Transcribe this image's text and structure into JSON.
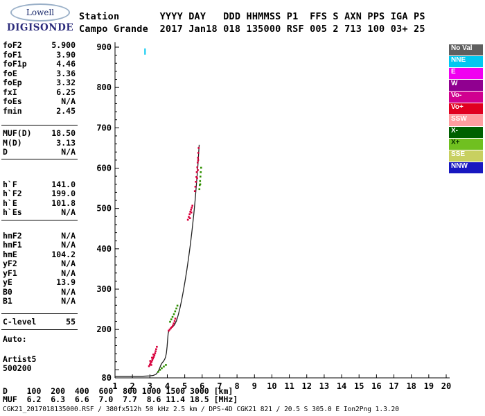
{
  "logo": {
    "name": "Lowell",
    "brand": "DIGISONDE"
  },
  "header": {
    "line1": "Station       YYYY DAY   DDD HHMMSS P1  FFS S AXN PPS IGA PS",
    "line2": "Campo Grande  2017 Jan18 018 135000 RSF 005 2 713 100 03+ 25"
  },
  "params": {
    "groups": [
      {
        "rows": [
          [
            "foF2",
            "5.900"
          ],
          [
            "foF1",
            "3.90"
          ],
          [
            "foF1p",
            "4.46"
          ],
          [
            "foE",
            "3.36"
          ],
          [
            "foEp",
            "3.32"
          ],
          [
            "fxI",
            "6.25"
          ],
          [
            "foEs",
            "N/A"
          ],
          [
            "fmin",
            "2.45"
          ]
        ]
      },
      {
        "rows": [
          [
            "MUF(D)",
            "18.50"
          ],
          [
            "M(D)",
            "3.13"
          ],
          [
            "D",
            "N/A"
          ]
        ]
      },
      {
        "rows": [
          [
            "h`F",
            "141.0"
          ],
          [
            "h`F2",
            "199.0"
          ],
          [
            "h`E",
            "101.8"
          ],
          [
            "h`Es",
            "N/A"
          ]
        ]
      },
      {
        "rows": [
          [
            "hmF2",
            "N/A"
          ],
          [
            "hmF1",
            "N/A"
          ],
          [
            "hmE",
            "104.2"
          ],
          [
            "yF2",
            "N/A"
          ],
          [
            "yF1",
            "N/A"
          ],
          [
            "yE",
            "13.9"
          ],
          [
            "B0",
            "N/A"
          ],
          [
            "B1",
            "N/A"
          ]
        ]
      },
      {
        "rows": [
          [
            "C-level",
            "55"
          ]
        ]
      },
      {
        "rows": [
          [
            "Auto:",
            ""
          ]
        ]
      },
      {
        "rows": [
          [
            "Artist5",
            ""
          ],
          [
            "500200",
            ""
          ]
        ]
      }
    ]
  },
  "legend": {
    "items": [
      {
        "label": "No Val",
        "color": "#5f5f5f",
        "text": "#ffffff"
      },
      {
        "label": "NNE",
        "color": "#00c8f0",
        "text": "#ffffff"
      },
      {
        "label": "E",
        "color": "#f000f0",
        "text": "#ffffff"
      },
      {
        "label": "W",
        "color": "#900090",
        "text": "#ffffff"
      },
      {
        "label": "Vo-",
        "color": "#d00090",
        "text": "#ffffff"
      },
      {
        "label": "Vo+",
        "color": "#e00020",
        "text": "#ffffff"
      },
      {
        "label": "SSW",
        "color": "#ff9ea0",
        "text": "#ffffff"
      },
      {
        "label": "X-",
        "color": "#006000",
        "text": "#ffffff"
      },
      {
        "label": "X+",
        "color": "#70c020",
        "text": "#0a3800"
      },
      {
        "label": "SSE",
        "color": "#c8d060",
        "text": "#ffffff"
      },
      {
        "label": "NNW",
        "color": "#1818c0",
        "text": "#ffffff"
      }
    ]
  },
  "chart_data": {
    "type": "scatter",
    "title": "",
    "xlabel": "",
    "ylabel": "",
    "xlim": [
      1,
      20
    ],
    "ylim": [
      80,
      900
    ],
    "x_ticks": [
      1,
      2,
      3,
      4,
      5,
      6,
      7,
      8,
      9,
      10,
      11,
      12,
      13,
      14,
      15,
      16,
      17,
      18,
      19,
      20
    ],
    "y_ticks": [
      900,
      800,
      700,
      600,
      500,
      400,
      300,
      200,
      80
    ],
    "grid": false,
    "legend_position": "right",
    "series": [
      {
        "name": "profile",
        "type": "line",
        "color": "#222222",
        "points": [
          [
            1.0,
            84
          ],
          [
            1.8,
            84
          ],
          [
            2.6,
            84
          ],
          [
            3.0,
            85
          ],
          [
            3.2,
            86
          ],
          [
            3.35,
            89
          ],
          [
            3.45,
            94
          ],
          [
            3.52,
            100
          ],
          [
            3.58,
            106
          ],
          [
            3.63,
            112
          ],
          [
            3.7,
            117
          ],
          [
            3.78,
            121
          ],
          [
            3.85,
            126
          ],
          [
            3.9,
            132
          ],
          [
            3.95,
            142
          ],
          [
            3.99,
            158
          ],
          [
            4.02,
            176
          ],
          [
            4.05,
            190
          ],
          [
            4.1,
            198
          ],
          [
            4.2,
            203
          ],
          [
            4.32,
            207
          ],
          [
            4.42,
            212
          ],
          [
            4.52,
            221
          ],
          [
            4.62,
            235
          ],
          [
            4.72,
            252
          ],
          [
            4.82,
            272
          ],
          [
            4.92,
            295
          ],
          [
            5.02,
            320
          ],
          [
            5.12,
            348
          ],
          [
            5.22,
            378
          ],
          [
            5.32,
            410
          ],
          [
            5.42,
            446
          ],
          [
            5.52,
            486
          ],
          [
            5.6,
            522
          ],
          [
            5.66,
            554
          ],
          [
            5.72,
            586
          ],
          [
            5.77,
            616
          ],
          [
            5.8,
            640
          ],
          [
            5.83,
            658
          ]
        ]
      },
      {
        "name": "o-mode-echoes",
        "type": "dots",
        "color": "#d8003c",
        "points": [
          [
            2.95,
            109
          ],
          [
            3.0,
            113
          ],
          [
            3.04,
            117
          ],
          [
            3.08,
            112
          ],
          [
            3.1,
            120
          ],
          [
            3.14,
            124
          ],
          [
            3.18,
            128
          ],
          [
            3.22,
            132
          ],
          [
            3.26,
            136
          ],
          [
            3.3,
            141
          ],
          [
            3.33,
            146
          ],
          [
            3.36,
            151
          ],
          [
            3.4,
            157
          ],
          [
            3.02,
            122
          ],
          [
            3.12,
            130
          ],
          [
            3.2,
            138
          ],
          [
            4.08,
            197
          ],
          [
            4.14,
            200
          ],
          [
            4.2,
            203
          ],
          [
            4.26,
            206
          ],
          [
            4.32,
            210
          ],
          [
            4.37,
            215
          ],
          [
            4.42,
            221
          ],
          [
            4.46,
            227
          ],
          [
            5.18,
            472
          ],
          [
            5.23,
            479
          ],
          [
            5.28,
            486
          ],
          [
            5.32,
            492
          ],
          [
            5.36,
            497
          ],
          [
            5.4,
            502
          ],
          [
            5.44,
            507
          ],
          [
            5.3,
            476
          ],
          [
            5.38,
            490
          ],
          [
            5.58,
            543
          ],
          [
            5.61,
            554
          ],
          [
            5.64,
            566
          ],
          [
            5.67,
            578
          ],
          [
            5.69,
            590
          ],
          [
            5.72,
            602
          ],
          [
            5.74,
            614
          ],
          [
            5.76,
            626
          ],
          [
            5.78,
            638
          ],
          [
            5.8,
            650
          ],
          [
            5.71,
            575
          ],
          [
            5.75,
            595
          ],
          [
            5.77,
            620
          ]
        ]
      },
      {
        "name": "x-mode-echoes",
        "type": "dots",
        "color": "#2f8f00",
        "points": [
          [
            3.48,
            95
          ],
          [
            3.58,
            100
          ],
          [
            3.68,
            104
          ],
          [
            3.8,
            108
          ],
          [
            3.92,
            112
          ],
          [
            4.16,
            219
          ],
          [
            4.23,
            225
          ],
          [
            4.3,
            231
          ],
          [
            4.38,
            238
          ],
          [
            4.45,
            245
          ],
          [
            4.52,
            252
          ],
          [
            4.58,
            259
          ],
          [
            5.84,
            548
          ],
          [
            5.86,
            558
          ],
          [
            5.88,
            568
          ],
          [
            5.9,
            579
          ],
          [
            5.92,
            590
          ],
          [
            5.94,
            601
          ],
          [
            5.89,
            560
          ]
        ]
      },
      {
        "name": "interference",
        "type": "vtick",
        "color": "#00c8f0",
        "points": [
          [
            2.72,
            890
          ]
        ]
      }
    ]
  },
  "footer": {
    "d_row": "D    100  200  400  600  800 1000 1500 3000 [km]",
    "muf_row": "MUF  6.2  6.3  6.6  7.0  7.7  8.6 11.4 18.5 [MHz]",
    "status": "CGK21_2017018135000.RSF / 380fx512h 50 kHz 2.5 km / DPS-4D CGK21 821 / 20.5 S 305.0 E Ion2Png 1.3.20"
  }
}
